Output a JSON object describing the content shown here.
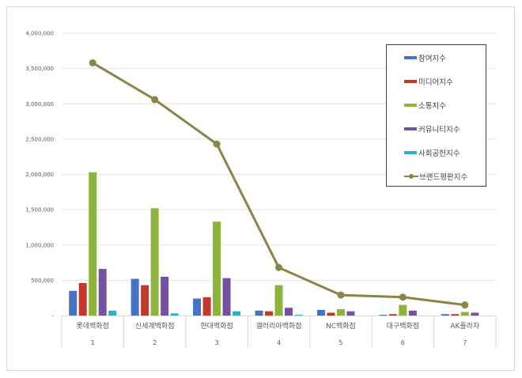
{
  "chart_data": {
    "type": "bar",
    "combo": "clustered bar + line",
    "title": "",
    "xlabel": "",
    "ylabel": "",
    "ylim": [
      0,
      4000000
    ],
    "yticks": [
      0,
      500000,
      1000000,
      1500000,
      2000000,
      2500000,
      3000000,
      3500000,
      4000000
    ],
    "ytick_labels": [
      "-",
      "500,000",
      "1,000,000",
      "1,500,000",
      "2,000,000",
      "2,500,000",
      "3,000,000",
      "3,500,000",
      "4,000,000"
    ],
    "grid": true,
    "legend_position": "top-right inside",
    "categories": [
      "롯데백화점",
      "신세계백화점",
      "현대백화점",
      "갤러리아백화점",
      "NC백화점",
      "대구백화점",
      "AK플라자"
    ],
    "category_numbers": [
      "1",
      "2",
      "3",
      "4",
      "5",
      "6",
      "7"
    ],
    "series": [
      {
        "name": "참여지수",
        "type": "bar",
        "color": "#4472c4",
        "values": [
          350000,
          520000,
          240000,
          70000,
          80000,
          10000,
          20000
        ]
      },
      {
        "name": "미디어지수",
        "type": "bar",
        "color": "#c0392b",
        "values": [
          460000,
          430000,
          260000,
          60000,
          40000,
          20000,
          20000
        ]
      },
      {
        "name": "소통지수",
        "type": "bar",
        "color": "#8cb43c",
        "values": [
          2030000,
          1520000,
          1330000,
          430000,
          90000,
          150000,
          50000
        ]
      },
      {
        "name": "커뮤니티지수",
        "type": "bar",
        "color": "#7452a0",
        "values": [
          660000,
          550000,
          530000,
          110000,
          60000,
          70000,
          40000
        ]
      },
      {
        "name": "사회공헌지수",
        "type": "bar",
        "color": "#2fb0c8",
        "values": [
          70000,
          30000,
          60000,
          10000,
          0,
          0,
          0
        ]
      },
      {
        "name": "브랜드평판지수",
        "type": "line",
        "color": "#8b8447",
        "values": [
          3580000,
          3060000,
          2430000,
          680000,
          290000,
          260000,
          150000
        ]
      }
    ]
  }
}
